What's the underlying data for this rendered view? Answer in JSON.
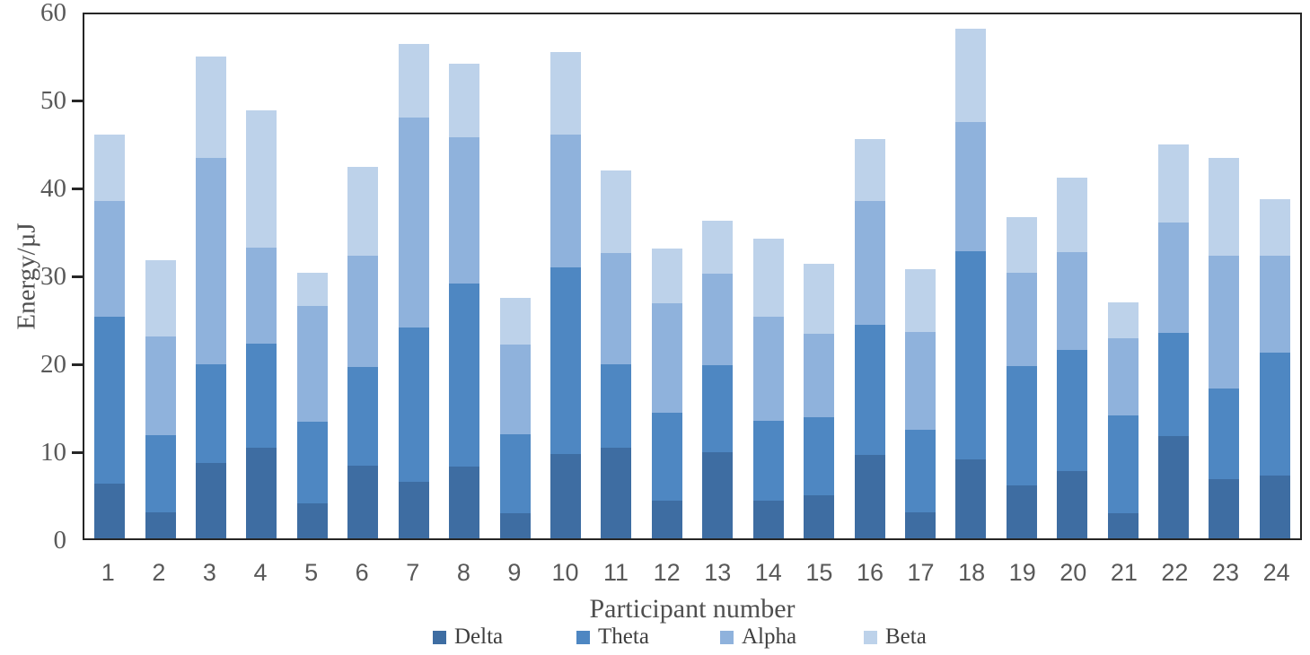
{
  "chart_data": {
    "type": "bar",
    "stacked": true,
    "title": "",
    "xlabel": "Participant number",
    "ylabel": "Energy/µJ",
    "ylim": [
      0,
      60
    ],
    "yticks": [
      0,
      10,
      20,
      30,
      40,
      50,
      60
    ],
    "grid": false,
    "legend_position": "bottom",
    "categories": [
      "1",
      "2",
      "3",
      "4",
      "5",
      "6",
      "7",
      "8",
      "9",
      "10",
      "11",
      "12",
      "13",
      "14",
      "15",
      "16",
      "17",
      "18",
      "19",
      "20",
      "21",
      "22",
      "23",
      "24"
    ],
    "series": [
      {
        "name": "Delta",
        "color": "#3e6da2",
        "values": [
          6.2,
          3.0,
          8.6,
          10.3,
          4.0,
          8.3,
          6.4,
          8.2,
          2.9,
          9.6,
          10.3,
          4.3,
          9.8,
          4.3,
          4.9,
          9.5,
          3.0,
          9.0,
          6.0,
          7.7,
          2.9,
          11.6,
          6.7,
          7.1
        ]
      },
      {
        "name": "Theta",
        "color": "#4e87c2",
        "values": [
          19.0,
          8.7,
          11.2,
          11.8,
          9.3,
          11.2,
          17.6,
          20.8,
          8.9,
          21.2,
          9.5,
          10.0,
          9.9,
          9.1,
          8.9,
          14.8,
          9.4,
          23.7,
          13.6,
          13.7,
          11.1,
          11.8,
          10.3,
          14.0
        ]
      },
      {
        "name": "Alpha",
        "color": "#8fb2dc",
        "values": [
          13.2,
          11.3,
          23.5,
          11.0,
          13.1,
          12.6,
          23.9,
          16.6,
          10.2,
          15.1,
          12.7,
          12.4,
          10.4,
          11.8,
          9.5,
          14.1,
          11.1,
          14.7,
          10.6,
          11.2,
          8.8,
          12.5,
          15.1,
          11.0
        ]
      },
      {
        "name": "Beta",
        "color": "#bdd2ea",
        "values": [
          7.5,
          8.6,
          11.5,
          15.6,
          3.8,
          10.2,
          8.3,
          8.4,
          5.3,
          9.4,
          9.3,
          6.3,
          6.0,
          8.9,
          7.9,
          7.0,
          7.1,
          10.6,
          6.3,
          8.4,
          4.0,
          8.9,
          11.2,
          6.5
        ]
      }
    ],
    "colors": {
      "axis_frame": "#262626",
      "tick_label": "#595959",
      "axis_title": "#4f4f4f",
      "legend_text": "#3f3f3f"
    }
  }
}
